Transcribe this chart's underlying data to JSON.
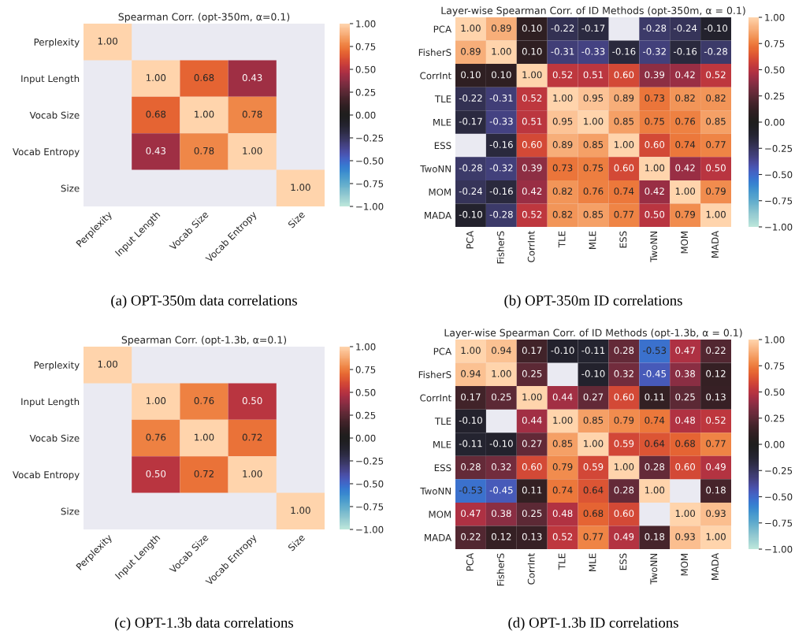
{
  "chart_data": [
    {
      "type": "heatmap",
      "title": "Spearman Corr. (opt-350m, α=0.1)",
      "categories": [
        "Perplexity",
        "Input Length",
        "Vocab Size",
        "Vocab Entropy",
        "Size"
      ],
      "y_categories": [
        "Perplexity",
        "Input Length",
        "Vocab Size",
        "Vocab Entropy",
        "Size"
      ],
      "cells": [
        [
          1.0,
          null,
          null,
          null,
          null
        ],
        [
          null,
          1.0,
          0.68,
          0.43,
          null
        ],
        [
          null,
          0.68,
          1.0,
          0.78,
          null
        ],
        [
          null,
          0.43,
          0.78,
          1.0,
          null
        ],
        [
          null,
          null,
          null,
          null,
          1.0
        ]
      ],
      "cell_labels": [
        [
          "1.00",
          null,
          null,
          null,
          null
        ],
        [
          null,
          "1.00",
          "0.68",
          "0.43",
          null
        ],
        [
          null,
          "0.68",
          "1.00",
          "0.78",
          null
        ],
        [
          null,
          "0.43",
          "0.78",
          "1.00",
          null
        ],
        [
          null,
          null,
          null,
          null,
          "1.00"
        ]
      ],
      "clim": [
        -1,
        1
      ],
      "cticks": [
        {
          "value": -1,
          "label": "−1.00"
        },
        {
          "value": -0.75,
          "label": "−0.75"
        },
        {
          "value": -0.5,
          "label": "−0.50"
        },
        {
          "value": -0.25,
          "label": "−0.25"
        },
        {
          "value": 0,
          "label": "0.00"
        },
        {
          "value": 0.25,
          "label": "0.25"
        },
        {
          "value": 0.5,
          "label": "0.50"
        },
        {
          "value": 0.75,
          "label": "0.75"
        },
        {
          "value": 1,
          "label": "1.00"
        }
      ],
      "annotations": [
        "(a) OPT-350m data correlations"
      ]
    },
    {
      "type": "heatmap",
      "title": "Layer-wise Spearman Corr. of ID Methods (opt-350m, α = 0.1)",
      "categories": [
        "PCA",
        "FisherS",
        "CorrInt",
        "TLE",
        "MLE",
        "ESS",
        "TwoNN",
        "MOM",
        "MADA"
      ],
      "y_categories": [
        "PCA",
        "FisherS",
        "CorrInt",
        "TLE",
        "MLE",
        "ESS",
        "TwoNN",
        "MOM",
        "MADA"
      ],
      "cells": [
        [
          1.0,
          0.89,
          0.1,
          -0.22,
          -0.17,
          null,
          -0.28,
          -0.24,
          -0.1
        ],
        [
          0.89,
          1.0,
          0.1,
          -0.31,
          -0.33,
          -0.16,
          -0.32,
          -0.16,
          -0.28
        ],
        [
          0.1,
          0.1,
          1.0,
          0.52,
          0.51,
          0.6,
          0.39,
          0.42,
          0.52
        ],
        [
          -0.22,
          -0.31,
          0.52,
          1.0,
          0.95,
          0.89,
          0.73,
          0.82,
          0.82
        ],
        [
          -0.17,
          -0.33,
          0.51,
          0.95,
          1.0,
          0.85,
          0.75,
          0.76,
          0.85
        ],
        [
          null,
          -0.16,
          0.6,
          0.89,
          0.85,
          1.0,
          0.6,
          0.74,
          0.77
        ],
        [
          -0.28,
          -0.32,
          0.39,
          0.73,
          0.75,
          0.6,
          1.0,
          0.42,
          0.5
        ],
        [
          -0.24,
          -0.16,
          0.42,
          0.82,
          0.76,
          0.74,
          0.42,
          1.0,
          0.79
        ],
        [
          -0.1,
          -0.28,
          0.52,
          0.82,
          0.85,
          0.77,
          0.5,
          0.79,
          1.0
        ]
      ],
      "cell_labels": [
        [
          "1.00",
          "0.89",
          "0.10",
          "-0.22",
          "-0.17",
          null,
          "-0.28",
          "-0.24",
          "-0.10"
        ],
        [
          "0.89",
          "1.00",
          "0.10",
          "-0.31",
          "-0.33",
          "-0.16",
          "-0.32",
          "-0.16",
          "-0.28"
        ],
        [
          "0.10",
          "0.10",
          "1.00",
          "0.52",
          "0.51",
          "0.60",
          "0.39",
          "0.42",
          "0.52"
        ],
        [
          "-0.22",
          "-0.31",
          "0.52",
          "1.00",
          "0.95",
          "0.89",
          "0.73",
          "0.82",
          "0.82"
        ],
        [
          "-0.17",
          "-0.33",
          "0.51",
          "0.95",
          "1.00",
          "0.85",
          "0.75",
          "0.76",
          "0.85"
        ],
        [
          null,
          "-0.16",
          "0.60",
          "0.89",
          "0.85",
          "1.00",
          "0.60",
          "0.74",
          "0.77"
        ],
        [
          "-0.28",
          "-0.32",
          "0.39",
          "0.73",
          "0.75",
          "0.60",
          "1.00",
          "0.42",
          "0.50"
        ],
        [
          "-0.24",
          "-0.16",
          "0.42",
          "0.82",
          "0.76",
          "0.74",
          "0.42",
          "1.00",
          "0.79"
        ],
        [
          "-0.10",
          "-0.28",
          "0.52",
          "0.82",
          "0.85",
          "0.77",
          "0.50",
          "0.79",
          "1.00"
        ]
      ],
      "clim": [
        -1,
        1
      ],
      "cticks": [
        {
          "value": -1,
          "label": "−1.00"
        },
        {
          "value": -0.75,
          "label": "−0.75"
        },
        {
          "value": -0.5,
          "label": "−0.50"
        },
        {
          "value": -0.25,
          "label": "−0.25"
        },
        {
          "value": 0,
          "label": "0.00"
        },
        {
          "value": 0.25,
          "label": "0.25"
        },
        {
          "value": 0.5,
          "label": "0.50"
        },
        {
          "value": 0.75,
          "label": "0.75"
        },
        {
          "value": 1,
          "label": "1.00"
        }
      ],
      "annotations": [
        "(b) OPT-350m ID correlations"
      ]
    },
    {
      "type": "heatmap",
      "title": "Spearman Corr. (opt-1.3b, α=0.1)",
      "categories": [
        "Perplexity",
        "Input Length",
        "Vocab Size",
        "Vocab Entropy",
        "Size"
      ],
      "y_categories": [
        "Perplexity",
        "Input Length",
        "Vocab Size",
        "Vocab Entropy",
        "Size"
      ],
      "cells": [
        [
          1.0,
          null,
          null,
          null,
          null
        ],
        [
          null,
          1.0,
          0.76,
          0.5,
          null
        ],
        [
          null,
          0.76,
          1.0,
          0.72,
          null
        ],
        [
          null,
          0.5,
          0.72,
          1.0,
          null
        ],
        [
          null,
          null,
          null,
          null,
          1.0
        ]
      ],
      "cell_labels": [
        [
          "1.00",
          null,
          null,
          null,
          null
        ],
        [
          null,
          "1.00",
          "0.76",
          "0.50",
          null
        ],
        [
          null,
          "0.76",
          "1.00",
          "0.72",
          null
        ],
        [
          null,
          "0.50",
          "0.72",
          "1.00",
          null
        ],
        [
          null,
          null,
          null,
          null,
          "1.00"
        ]
      ],
      "clim": [
        -1,
        1
      ],
      "cticks": [
        {
          "value": -1,
          "label": "−1.00"
        },
        {
          "value": -0.75,
          "label": "−0.75"
        },
        {
          "value": -0.5,
          "label": "−0.50"
        },
        {
          "value": -0.25,
          "label": "−0.25"
        },
        {
          "value": 0,
          "label": "0.00"
        },
        {
          "value": 0.25,
          "label": "0.25"
        },
        {
          "value": 0.5,
          "label": "0.50"
        },
        {
          "value": 0.75,
          "label": "0.75"
        },
        {
          "value": 1,
          "label": "1.00"
        }
      ],
      "annotations": [
        "(c) OPT-1.3b data correlations"
      ]
    },
    {
      "type": "heatmap",
      "title": "Layer-wise Spearman Corr. of ID Methods (opt-1.3b, α = 0.1)",
      "categories": [
        "PCA",
        "FisherS",
        "CorrInt",
        "TLE",
        "MLE",
        "ESS",
        "TwoNN",
        "MOM",
        "MADA"
      ],
      "y_categories": [
        "PCA",
        "FisherS",
        "CorrInt",
        "TLE",
        "MLE",
        "ESS",
        "TwoNN",
        "MOM",
        "MADA"
      ],
      "cells": [
        [
          1.0,
          0.94,
          0.17,
          -0.1,
          -0.11,
          0.28,
          -0.53,
          0.47,
          0.22
        ],
        [
          0.94,
          1.0,
          0.25,
          null,
          -0.1,
          0.32,
          -0.45,
          0.38,
          0.12
        ],
        [
          0.17,
          0.25,
          1.0,
          0.44,
          0.27,
          0.6,
          0.11,
          0.25,
          0.13
        ],
        [
          -0.1,
          null,
          0.44,
          1.0,
          0.85,
          0.79,
          0.74,
          0.48,
          0.52
        ],
        [
          -0.11,
          -0.1,
          0.27,
          0.85,
          1.0,
          0.59,
          0.64,
          0.68,
          0.77
        ],
        [
          0.28,
          0.32,
          0.6,
          0.79,
          0.59,
          1.0,
          0.28,
          0.6,
          0.49
        ],
        [
          -0.53,
          -0.45,
          0.11,
          0.74,
          0.64,
          0.28,
          1.0,
          null,
          0.18
        ],
        [
          0.47,
          0.38,
          0.25,
          0.48,
          0.68,
          0.6,
          null,
          1.0,
          0.93
        ],
        [
          0.22,
          0.12,
          0.13,
          0.52,
          0.77,
          0.49,
          0.18,
          0.93,
          1.0
        ]
      ],
      "cell_labels": [
        [
          "1.00",
          "0.94",
          "0.17",
          "-0.10",
          "-0.11",
          "0.28",
          "-0.53",
          "0.47",
          "0.22"
        ],
        [
          "0.94",
          "1.00",
          "0.25",
          null,
          "-0.10",
          "0.32",
          "-0.45",
          "0.38",
          "0.12"
        ],
        [
          "0.17",
          "0.25",
          "1.00",
          "0.44",
          "0.27",
          "0.60",
          "0.11",
          "0.25",
          "0.13"
        ],
        [
          "-0.10",
          null,
          "0.44",
          "1.00",
          "0.85",
          "0.79",
          "0.74",
          "0.48",
          "0.52"
        ],
        [
          "-0.11",
          "-0.10",
          "0.27",
          "0.85",
          "1.00",
          "0.59",
          "0.64",
          "0.68",
          "0.77"
        ],
        [
          "0.28",
          "0.32",
          "0.60",
          "0.79",
          "0.59",
          "1.00",
          "0.28",
          "0.60",
          "0.49"
        ],
        [
          "-0.53",
          "-0.45",
          "0.11",
          "0.74",
          "0.64",
          "0.28",
          "1.00",
          null,
          "0.18"
        ],
        [
          "0.47",
          "0.38",
          "0.25",
          "0.48",
          "0.68",
          "0.60",
          null,
          "1.00",
          "0.93"
        ],
        [
          "0.22",
          "0.12",
          "0.13",
          "0.52",
          "0.77",
          "0.49",
          "0.18",
          "0.93",
          "1.00"
        ]
      ],
      "clim": [
        -1,
        1
      ],
      "cticks": [
        {
          "value": -1,
          "label": "−1.00"
        },
        {
          "value": -0.75,
          "label": "−0.75"
        },
        {
          "value": -0.5,
          "label": "−0.50"
        },
        {
          "value": -0.25,
          "label": "−0.25"
        },
        {
          "value": 0,
          "label": "0.00"
        },
        {
          "value": 0.25,
          "label": "0.25"
        },
        {
          "value": 0.5,
          "label": "0.50"
        },
        {
          "value": 0.75,
          "label": "0.75"
        },
        {
          "value": 1,
          "label": "1.00"
        }
      ],
      "annotations": [
        "(d) OPT-1.3b ID correlations"
      ]
    }
  ]
}
